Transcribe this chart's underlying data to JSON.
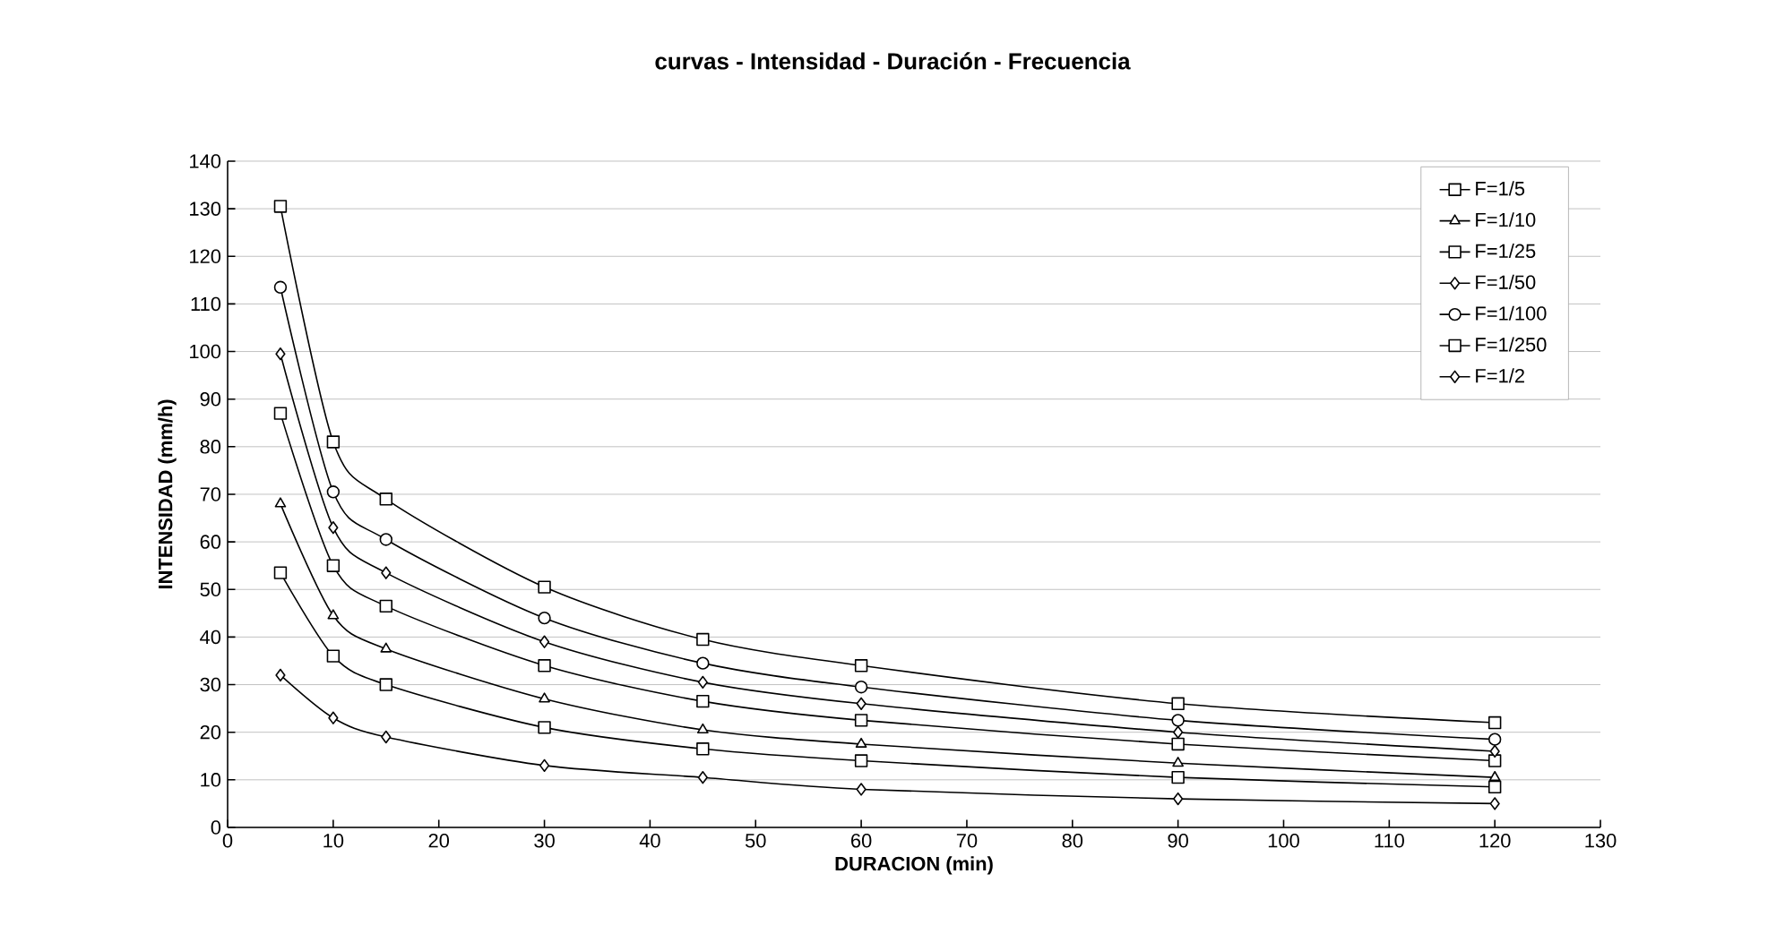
{
  "chart_data": {
    "type": "line",
    "title": "curvas - Intensidad - Duración - Frecuencia",
    "xlabel": "DURACION (min)",
    "ylabel": "INTENSIDAD (mm/h)",
    "x": [
      5,
      10,
      15,
      30,
      45,
      60,
      90,
      120
    ],
    "series": [
      {
        "name": "F=1/5",
        "color": "#000000",
        "marker": "square",
        "values": [
          53.5,
          36,
          30,
          21,
          16.5,
          14,
          10.5,
          8.5
        ]
      },
      {
        "name": "F=1/10",
        "color": "#000000",
        "marker": "triangle",
        "values": [
          68,
          44.5,
          37.5,
          27,
          20.5,
          17.5,
          13.5,
          10.5
        ]
      },
      {
        "name": "F=1/25",
        "color": "#000000",
        "marker": "square",
        "values": [
          87,
          55,
          46.5,
          34,
          26.5,
          22.5,
          17.5,
          14
        ]
      },
      {
        "name": "F=1/50",
        "color": "#000000",
        "marker": "diamond",
        "values": [
          99.5,
          63,
          53.5,
          39,
          30.5,
          26,
          20,
          16
        ]
      },
      {
        "name": "F=1/100",
        "color": "#000000",
        "marker": "circle",
        "values": [
          113.5,
          70.5,
          60.5,
          44,
          34.5,
          29.5,
          22.5,
          18.5
        ]
      },
      {
        "name": "F=1/250",
        "color": "#000000",
        "marker": "square",
        "values": [
          130.5,
          81,
          69,
          50.5,
          39.5,
          34,
          26,
          22
        ]
      },
      {
        "name": "F=1/2",
        "color": "#000000",
        "marker": "diamond",
        "values": [
          32,
          23,
          19,
          13,
          10.5,
          8,
          6,
          5
        ]
      }
    ],
    "xlim": [
      0,
      130
    ],
    "xticks": [
      0,
      10,
      20,
      30,
      40,
      50,
      60,
      70,
      80,
      90,
      100,
      110,
      120,
      130
    ],
    "ylim": [
      0,
      140
    ],
    "yticks": [
      0,
      10,
      20,
      30,
      40,
      50,
      60,
      70,
      80,
      90,
      100,
      110,
      120,
      130,
      140
    ],
    "grid": "y",
    "legend": "top right",
    "line_style": "solid"
  }
}
